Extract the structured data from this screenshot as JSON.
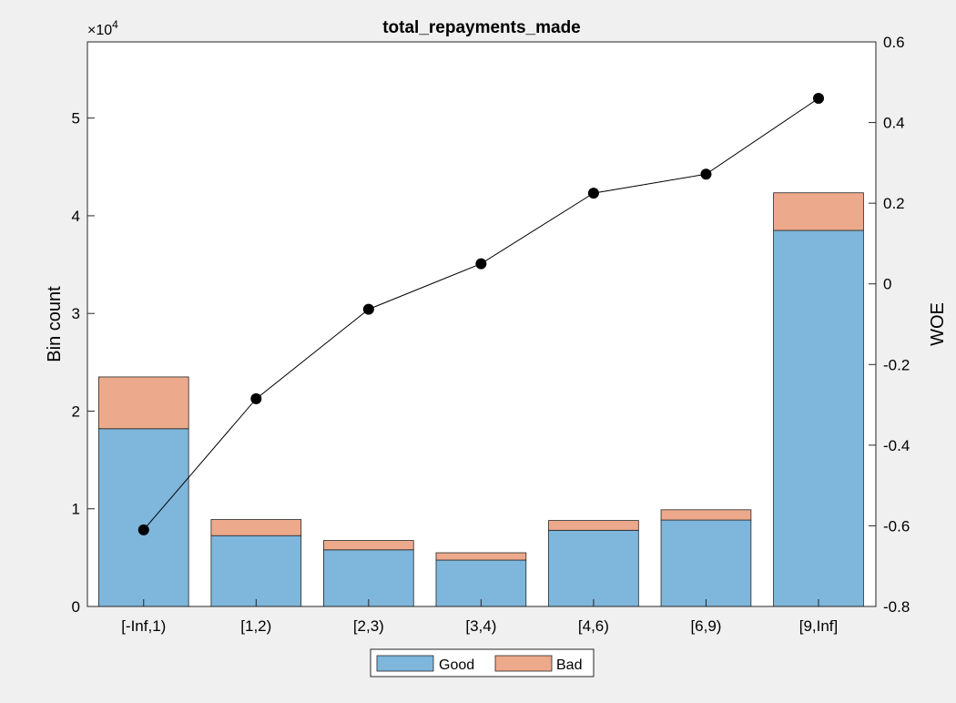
{
  "chart_data": {
    "type": "bar",
    "title": "total_repayments_made",
    "ylabel_left": "Bin count",
    "ylabel_right": "WOE",
    "left_axis_multiplier": "×10",
    "left_axis_exponent": "4",
    "categories": [
      "[-Inf,1)",
      "[1,2)",
      "[2,3)",
      "[3,4)",
      "[4,6)",
      "[6,9)",
      "[9,Inf]"
    ],
    "stacked": true,
    "series": [
      {
        "name": "Good",
        "color": "#7eb6dc",
        "values": [
          18200,
          7250,
          5800,
          4750,
          7800,
          8850,
          38500
        ]
      },
      {
        "name": "Bad",
        "color": "#eda98b",
        "values": [
          5300,
          1650,
          950,
          750,
          1000,
          1050,
          3850
        ]
      }
    ],
    "woe": {
      "axis": "right",
      "values": [
        -0.61,
        -0.285,
        -0.063,
        0.05,
        0.225,
        0.272,
        0.46
      ]
    },
    "ylim_left": [
      0,
      57800
    ],
    "yticks_left": [
      0,
      10000,
      20000,
      30000,
      40000,
      50000
    ],
    "yticklabels_left": [
      "0",
      "1",
      "2",
      "3",
      "4",
      "5"
    ],
    "ylim_right": [
      -0.8,
      0.6
    ],
    "yticks_right": [
      -0.8,
      -0.6,
      -0.4,
      -0.2,
      0,
      0.2,
      0.4,
      0.6
    ],
    "yticklabels_right": [
      "-0.8",
      "-0.6",
      "-0.4",
      "-0.2",
      "0",
      "0.2",
      "0.4",
      "0.6"
    ],
    "grid": false,
    "legend": {
      "placement": "bottom-center",
      "entries": [
        "Good",
        "Bad"
      ]
    }
  }
}
